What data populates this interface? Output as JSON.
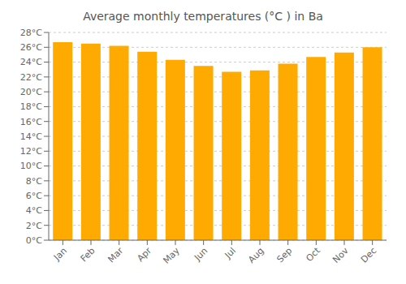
{
  "chart_data": {
    "type": "bar",
    "title": "Average monthly temperatures (°C ) in Ba",
    "categories": [
      "Jan",
      "Feb",
      "Mar",
      "Apr",
      "May",
      "Jun",
      "Jul",
      "Aug",
      "Sep",
      "Oct",
      "Nov",
      "Dec"
    ],
    "values": [
      26.7,
      26.5,
      26.2,
      25.4,
      24.3,
      23.5,
      22.7,
      22.9,
      23.8,
      24.7,
      25.3,
      26.0
    ],
    "color": "#FFAA00",
    "ylim": [
      0,
      28
    ],
    "yticks": [
      {
        "value": 0,
        "label": "0°C"
      },
      {
        "value": 2,
        "label": "2°C"
      },
      {
        "value": 4,
        "label": "4°C"
      },
      {
        "value": 6,
        "label": "6°C"
      },
      {
        "value": 8,
        "label": "8°C"
      },
      {
        "value": 10,
        "label": "10°C"
      },
      {
        "value": 12,
        "label": "12°C"
      },
      {
        "value": 14,
        "label": "14°C"
      },
      {
        "value": 16,
        "label": "16°C"
      },
      {
        "value": 18,
        "label": "18°C"
      },
      {
        "value": 20,
        "label": "20°C"
      },
      {
        "value": 22,
        "label": "22°C"
      },
      {
        "value": 24,
        "label": "24°C"
      },
      {
        "value": 26,
        "label": "26°C"
      },
      {
        "value": 28,
        "label": "28°C"
      }
    ],
    "grid": true
  }
}
